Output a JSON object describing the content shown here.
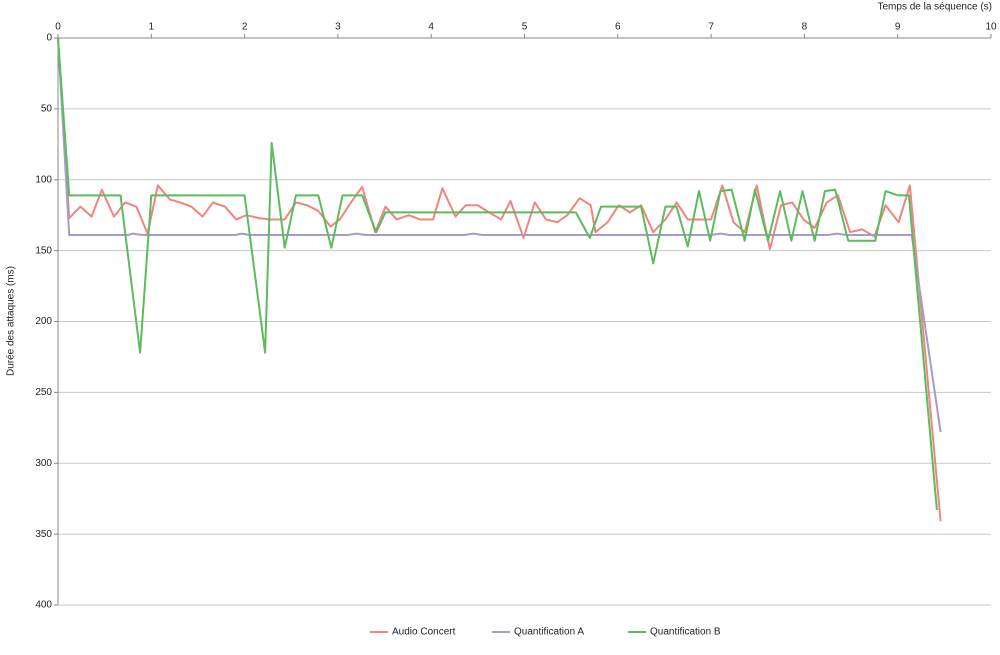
{
  "chart_data": {
    "type": "line",
    "xlabel": "Temps de la séquence (s)",
    "ylabel": "Durée des attaques (ms)",
    "xlim": [
      0,
      10
    ],
    "xticks": [
      0,
      1,
      2,
      3,
      4,
      5,
      6,
      7,
      8,
      9,
      10
    ],
    "ylim": [
      0,
      400
    ],
    "yticks": [
      0,
      50,
      100,
      150,
      200,
      250,
      300,
      350,
      400
    ],
    "y_inverted": true,
    "x_axis_position": "top",
    "grid": true,
    "legend": "bottom",
    "series": [
      {
        "name": "Audio Concert",
        "color": "#f08580",
        "x": [
          0,
          0.12,
          0.24,
          0.36,
          0.47,
          0.6,
          0.72,
          0.84,
          0.96,
          1.07,
          1.2,
          1.31,
          1.43,
          1.55,
          1.66,
          1.79,
          1.91,
          2.02,
          2.15,
          2.26,
          2.43,
          2.55,
          2.67,
          2.79,
          2.92,
          3.02,
          3.14,
          3.26,
          3.4,
          3.51,
          3.63,
          3.76,
          3.88,
          4.02,
          4.12,
          4.26,
          4.37,
          4.5,
          4.62,
          4.75,
          4.85,
          4.99,
          5.11,
          5.23,
          5.35,
          5.46,
          5.59,
          5.71,
          5.76,
          5.89,
          6.01,
          6.13,
          6.25,
          6.38,
          6.51,
          6.63,
          6.75,
          6.87,
          7,
          7.12,
          7.24,
          7.36,
          7.49,
          7.63,
          7.75,
          7.87,
          7.99,
          8.11,
          8.24,
          8.36,
          8.49,
          8.62,
          8.75,
          8.87,
          9.01,
          9.13,
          9.46
        ],
        "values": [
          0,
          127,
          119,
          126,
          107,
          126,
          116,
          119,
          138,
          104,
          114,
          116,
          119,
          126,
          116,
          119,
          128,
          125,
          127,
          128,
          128,
          116,
          118,
          122,
          133,
          128,
          116,
          105,
          137,
          119,
          128,
          125,
          128,
          128,
          106,
          126,
          118,
          118,
          123,
          128,
          115,
          141,
          116,
          128,
          130,
          125,
          113,
          118,
          137,
          130,
          118,
          123,
          118,
          137,
          128,
          116,
          128,
          128,
          128,
          104,
          130,
          137,
          104,
          149,
          118,
          116,
          128,
          134,
          116,
          111,
          137,
          135,
          140,
          118,
          130,
          104,
          341
        ]
      },
      {
        "name": "Quantification A",
        "color": "#a79bc8",
        "x": [
          0,
          0.12,
          0.75,
          0.8,
          0.9,
          1.9,
          1.97,
          2.05,
          3.1,
          3.2,
          3.3,
          4.35,
          4.45,
          4.55,
          7,
          7.1,
          7.2,
          8.25,
          8.35,
          8.45,
          9.15,
          9.46
        ],
        "values": [
          0,
          139,
          139,
          138,
          139,
          139,
          138,
          139,
          139,
          138,
          139,
          139,
          138,
          139,
          139,
          138,
          139,
          139,
          138,
          139,
          139,
          278
        ]
      },
      {
        "name": "Quantification B",
        "color": "#5cbc5c",
        "x": [
          0,
          0.12,
          0.67,
          0.88,
          1,
          2,
          2.22,
          2.29,
          2.43,
          2.55,
          2.79,
          2.93,
          3.05,
          3.26,
          3.41,
          3.51,
          5.55,
          5.7,
          5.82,
          6.25,
          6.38,
          6.51,
          6.63,
          6.75,
          6.87,
          6.99,
          7.1,
          7.22,
          7.36,
          7.47,
          7.61,
          7.74,
          7.86,
          7.98,
          8.11,
          8.22,
          8.33,
          8.47,
          8.76,
          8.87,
          9,
          9.12,
          9.42
        ],
        "values": [
          0,
          111,
          111,
          222,
          111,
          111,
          222,
          74,
          148,
          111,
          111,
          148,
          111,
          111,
          137,
          123,
          123,
          141,
          119,
          119,
          159,
          119,
          119,
          147,
          108,
          143,
          108,
          107,
          143,
          107,
          143,
          108,
          143,
          108,
          143,
          108,
          107,
          143,
          143,
          108,
          111,
          111,
          333
        ]
      }
    ]
  }
}
